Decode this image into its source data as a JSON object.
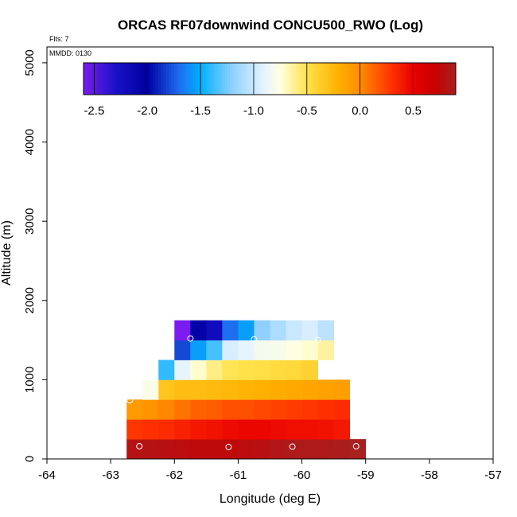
{
  "chart_data": {
    "type": "heatmap",
    "title": "ORCAS RF07downwind CONCU500_RWO (Log)",
    "xlabel": "Longitude (deg E)",
    "ylabel": "Altitude (m)",
    "xlim": [
      -64,
      -57
    ],
    "ylim": [
      0,
      5200
    ],
    "x_ticks": [
      -64,
      -63,
      -62,
      -61,
      -60,
      -59,
      -58,
      -57
    ],
    "y_ticks": [
      0,
      1000,
      2000,
      3000,
      4000,
      5000
    ],
    "flights_label": "Flts: 7",
    "mmdd_label": "MMDD: 0130",
    "colorbar": {
      "min": -2.6,
      "max": 0.9,
      "ticks": [
        -2.5,
        -2.0,
        -1.5,
        -1.0,
        -0.5,
        0.0,
        0.5
      ],
      "tick_labels": [
        "-2.5",
        "-2.0",
        "-1.5",
        "-1.0",
        "-0.5",
        "0.0",
        "0.5"
      ],
      "stops": [
        {
          "v": -2.6,
          "c": "#7a1cf0"
        },
        {
          "v": -2.3,
          "c": "#1a12c8"
        },
        {
          "v": -2.0,
          "c": "#0000a0"
        },
        {
          "v": -1.7,
          "c": "#1e6ef0"
        },
        {
          "v": -1.5,
          "c": "#00b0ff"
        },
        {
          "v": -1.2,
          "c": "#8fd0ff"
        },
        {
          "v": -0.9,
          "c": "#e6f4ff"
        },
        {
          "v": -0.75,
          "c": "#ffffe0"
        },
        {
          "v": -0.5,
          "c": "#ffe24a"
        },
        {
          "v": -0.2,
          "c": "#ffb000"
        },
        {
          "v": 0.0,
          "c": "#ff8c00"
        },
        {
          "v": 0.3,
          "c": "#ff3000"
        },
        {
          "v": 0.5,
          "c": "#e80000"
        },
        {
          "v": 0.7,
          "c": "#c80000"
        },
        {
          "v": 0.9,
          "c": "#a82020"
        }
      ]
    },
    "lon_edges": [
      -62.75,
      -62.5,
      -62.25,
      -62.0,
      -61.75,
      -61.5,
      -61.25,
      -61.0,
      -60.75,
      -60.5,
      -60.25,
      -60.0,
      -59.75,
      -59.5,
      -59.25,
      -59.0
    ],
    "alt_edges": [
      0,
      250,
      500,
      750,
      1000,
      1250,
      1500,
      1750
    ],
    "grid_values": [
      [
        0.82,
        0.82,
        0.8,
        0.78,
        0.76,
        0.76,
        0.76,
        0.78,
        0.8,
        0.84,
        0.86,
        0.86,
        0.86,
        0.88,
        0.9
      ],
      [
        0.28,
        0.3,
        0.32,
        0.36,
        0.4,
        0.42,
        0.46,
        0.47,
        0.47,
        0.46,
        0.44,
        0.44,
        0.42,
        0.4,
        null
      ],
      [
        -0.08,
        -0.04,
        0.02,
        0.08,
        0.14,
        0.16,
        0.2,
        0.2,
        0.22,
        0.24,
        0.26,
        0.28,
        0.3,
        0.32,
        null
      ],
      [
        null,
        -0.78,
        -0.32,
        -0.28,
        -0.28,
        -0.26,
        -0.24,
        -0.22,
        -0.2,
        -0.18,
        -0.16,
        -0.14,
        -0.12,
        -0.1,
        null
      ],
      [
        null,
        null,
        -1.4,
        -0.9,
        -0.72,
        -0.6,
        -0.52,
        -0.5,
        -0.48,
        -0.46,
        -0.44,
        -0.4,
        null,
        null,
        null
      ],
      [
        null,
        null,
        null,
        -1.8,
        -1.55,
        -1.35,
        -0.95,
        -0.9,
        -0.82,
        -0.8,
        -0.76,
        -0.72,
        -0.64,
        null,
        null
      ],
      [
        null,
        null,
        null,
        -2.6,
        -2.05,
        -2.2,
        -1.7,
        -1.55,
        -1.2,
        -1.1,
        -1.0,
        -0.95,
        -1.05,
        null,
        null
      ]
    ],
    "sample_points": [
      {
        "lon": -62.55,
        "alt": 160
      },
      {
        "lon": -61.15,
        "alt": 150
      },
      {
        "lon": -60.15,
        "alt": 155
      },
      {
        "lon": -59.15,
        "alt": 160
      },
      {
        "lon": -62.7,
        "alt": 740
      },
      {
        "lon": -61.75,
        "alt": 1520
      },
      {
        "lon": -60.75,
        "alt": 1510
      },
      {
        "lon": -59.75,
        "alt": 1500
      }
    ]
  }
}
